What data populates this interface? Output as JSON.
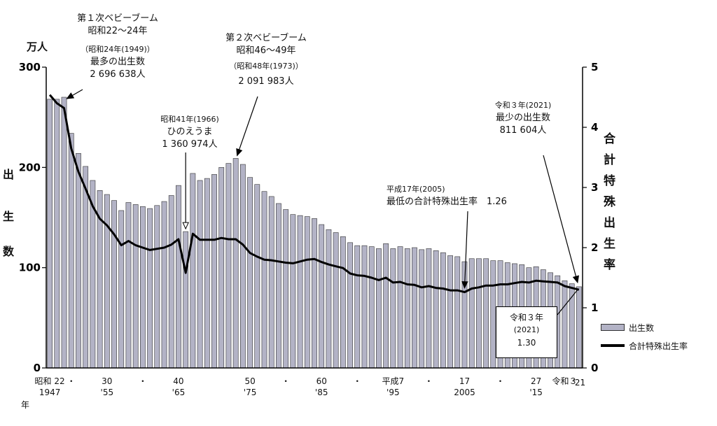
{
  "chart_data": {
    "type": "bar+line",
    "unit_left": "万人",
    "ylabel_left": [
      "出",
      "生",
      "数"
    ],
    "ylabel_right": [
      "合",
      "計",
      "特",
      "殊",
      "出",
      "生",
      "率"
    ],
    "ylim_left": [
      0,
      300
    ],
    "ylim_right": [
      0,
      5
    ],
    "yticks_left": [
      "0",
      "100",
      "200",
      "300"
    ],
    "yticks_right": [
      "0",
      "1",
      "2",
      "3",
      "4",
      "5"
    ],
    "years": [
      1947,
      1948,
      1949,
      1950,
      1951,
      1952,
      1953,
      1954,
      1955,
      1956,
      1957,
      1958,
      1959,
      1960,
      1961,
      1962,
      1963,
      1964,
      1965,
      1966,
      1967,
      1968,
      1969,
      1970,
      1971,
      1972,
      1973,
      1974,
      1975,
      1976,
      1977,
      1978,
      1979,
      1980,
      1981,
      1982,
      1983,
      1984,
      1985,
      1986,
      1987,
      1988,
      1989,
      1990,
      1991,
      1992,
      1993,
      1994,
      1995,
      1996,
      1997,
      1998,
      1999,
      2000,
      2001,
      2002,
      2003,
      2004,
      2005,
      2006,
      2007,
      2008,
      2009,
      2010,
      2011,
      2012,
      2013,
      2014,
      2015,
      2016,
      2017,
      2018,
      2019,
      2020,
      2021
    ],
    "series": [
      {
        "name": "出生数",
        "type": "bar",
        "values": [
          268,
          268,
          270,
          234,
          214,
          201,
          187,
          177,
          173,
          167,
          157,
          165,
          163,
          161,
          159,
          162,
          166,
          172,
          182,
          136,
          194,
          187,
          189,
          193,
          200,
          204,
          209,
          203,
          190,
          183,
          176,
          171,
          164,
          158,
          153,
          152,
          151,
          149,
          143,
          138,
          135,
          131,
          125,
          122,
          122,
          121,
          119,
          124,
          119,
          121,
          119,
          120,
          118,
          119,
          117,
          115,
          112,
          111,
          106,
          109,
          109,
          109,
          107,
          107,
          105,
          104,
          103,
          100,
          101,
          98,
          95,
          92,
          87,
          84,
          81
        ]
      },
      {
        "name": "合計特殊出生率",
        "type": "line",
        "values": [
          4.54,
          4.4,
          4.32,
          3.65,
          3.26,
          2.98,
          2.69,
          2.48,
          2.37,
          2.22,
          2.04,
          2.11,
          2.04,
          2.0,
          1.96,
          1.98,
          2.0,
          2.05,
          2.14,
          1.58,
          2.23,
          2.13,
          2.13,
          2.13,
          2.16,
          2.14,
          2.14,
          2.05,
          1.91,
          1.85,
          1.8,
          1.79,
          1.77,
          1.75,
          1.74,
          1.77,
          1.8,
          1.81,
          1.76,
          1.72,
          1.69,
          1.66,
          1.57,
          1.54,
          1.53,
          1.5,
          1.46,
          1.5,
          1.42,
          1.43,
          1.39,
          1.38,
          1.34,
          1.36,
          1.33,
          1.32,
          1.29,
          1.29,
          1.26,
          1.32,
          1.34,
          1.37,
          1.37,
          1.39,
          1.39,
          1.41,
          1.43,
          1.42,
          1.45,
          1.44,
          1.43,
          1.42,
          1.36,
          1.33,
          1.3
        ]
      }
    ],
    "xticks": [
      {
        "year": 1947,
        "label1": "昭和 22",
        "label2": "1947"
      },
      {
        "year": 1950,
        "label1": "・",
        "label2": ""
      },
      {
        "year": 1955,
        "label1": "30",
        "label2": "'55"
      },
      {
        "year": 1960,
        "label1": "・",
        "label2": ""
      },
      {
        "year": 1965,
        "label1": "40",
        "label2": "'65"
      },
      {
        "year": 1975,
        "label1": "50",
        "label2": "'75"
      },
      {
        "year": 1980,
        "label1": "・",
        "label2": ""
      },
      {
        "year": 1985,
        "label1": "60",
        "label2": "'85"
      },
      {
        "year": 1990,
        "label1": "・",
        "label2": ""
      },
      {
        "year": 1995,
        "label1": "平成7",
        "label2": "'95"
      },
      {
        "year": 2000,
        "label1": "・",
        "label2": ""
      },
      {
        "year": 2005,
        "label1": "17",
        "label2": "2005"
      },
      {
        "year": 2010,
        "label1": "・",
        "label2": ""
      },
      {
        "year": 2015,
        "label1": "27",
        "label2": "'15"
      },
      {
        "year": 2019,
        "label1": "令和３",
        "label2": ""
      },
      {
        "year": 2021,
        "label1": "",
        "label2": "'21"
      }
    ],
    "xaxis_suffix": "年",
    "legend": {
      "bar": "出生数",
      "line": "合計特殊出生率",
      "placement": "right"
    }
  },
  "annotations": {
    "boom1": {
      "line1": "第１次ベビーブーム",
      "line2": "昭和22〜24年",
      "line3": "（昭和24年(1949)）",
      "line4": "最多の出生数",
      "line5": "2 696 638人"
    },
    "hinoe": {
      "line1": "昭和41年(1966)",
      "line2": "ひのえうま",
      "line3": "1 360 974人"
    },
    "boom2": {
      "line1": "第２次ベビーブーム",
      "line2": "昭和46〜49年",
      "line3": "（昭和48年(1973)）",
      "line4": "2 091 983人"
    },
    "low2005": {
      "line1": "平成17年(2005)",
      "line2": "最低の合計特殊出生率　1.26"
    },
    "min2021": {
      "line1": "令和３年(2021)",
      "line2": "最少の出生数",
      "line3": "811 604人"
    },
    "tfr2021": {
      "line1": "令和３年",
      "line2": "(2021)",
      "line3": "1.30"
    }
  }
}
